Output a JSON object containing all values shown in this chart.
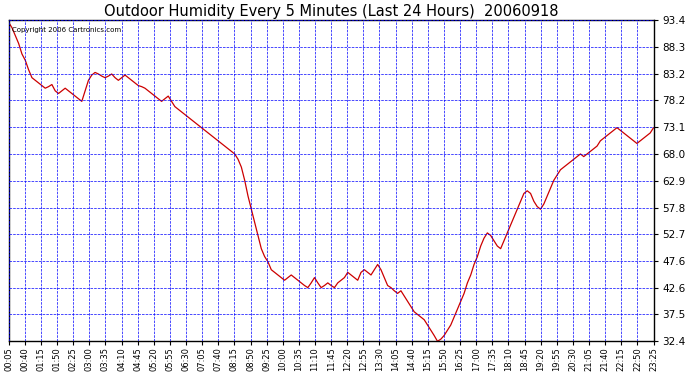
{
  "title": "Outdoor Humidity Every 5 Minutes (Last 24 Hours)  20060918",
  "copyright_text": "Copyright 2006 Cartronics.com",
  "line_color": "#cc0000",
  "background_color": "#ffffff",
  "plot_bg_color": "#ffffff",
  "grid_color": "#0000ff",
  "border_color": "#000000",
  "yticks": [
    32.4,
    37.5,
    42.6,
    47.6,
    52.7,
    57.8,
    62.9,
    68.0,
    73.1,
    78.2,
    83.2,
    88.3,
    93.4
  ],
  "ymin": 32.4,
  "ymax": 93.4,
  "xtick_labels": [
    "00:05",
    "00:40",
    "01:15",
    "01:50",
    "02:25",
    "03:00",
    "03:35",
    "04:10",
    "04:45",
    "05:20",
    "05:55",
    "06:30",
    "07:05",
    "07:40",
    "08:15",
    "08:50",
    "09:25",
    "10:00",
    "10:35",
    "11:10",
    "11:45",
    "12:20",
    "12:55",
    "13:30",
    "14:05",
    "14:40",
    "15:15",
    "15:50",
    "16:25",
    "17:00",
    "17:35",
    "18:10",
    "18:45",
    "19:20",
    "19:55",
    "20:30",
    "21:05",
    "21:40",
    "22:15",
    "22:50",
    "23:25"
  ],
  "humidity_values": [
    93.0,
    92.0,
    90.5,
    89.0,
    87.0,
    85.8,
    84.0,
    82.5,
    82.0,
    81.5,
    81.0,
    80.5,
    80.8,
    81.2,
    80.0,
    79.5,
    80.0,
    80.5,
    80.0,
    79.5,
    79.0,
    78.5,
    78.0,
    80.0,
    82.0,
    83.0,
    83.5,
    83.2,
    82.8,
    82.5,
    82.8,
    83.2,
    82.5,
    82.0,
    82.5,
    83.0,
    82.5,
    82.0,
    81.5,
    81.0,
    80.8,
    80.5,
    80.0,
    79.5,
    79.0,
    78.5,
    78.0,
    78.5,
    79.0,
    78.0,
    77.0,
    76.5,
    76.0,
    75.5,
    75.0,
    74.5,
    74.0,
    73.5,
    73.0,
    72.5,
    72.0,
    71.5,
    71.0,
    70.5,
    70.0,
    69.5,
    69.0,
    68.5,
    68.0,
    67.0,
    65.5,
    63.0,
    60.0,
    57.5,
    55.0,
    52.5,
    50.0,
    48.5,
    47.5,
    46.0,
    45.5,
    45.0,
    44.5,
    44.0,
    44.5,
    45.0,
    44.5,
    44.0,
    43.5,
    43.0,
    42.6,
    43.5,
    44.5,
    43.5,
    42.6,
    43.0,
    43.5,
    43.0,
    42.6,
    43.5,
    44.0,
    44.5,
    45.5,
    45.0,
    44.5,
    44.0,
    45.5,
    46.0,
    45.5,
    45.0,
    46.0,
    47.0,
    46.0,
    44.5,
    43.0,
    42.6,
    42.0,
    41.5,
    42.0,
    41.0,
    40.0,
    39.0,
    38.0,
    37.5,
    37.0,
    36.5,
    35.5,
    34.5,
    33.5,
    32.4,
    32.8,
    33.5,
    34.5,
    35.5,
    37.0,
    38.5,
    40.0,
    41.5,
    43.5,
    45.0,
    47.0,
    48.5,
    50.5,
    52.0,
    53.0,
    52.5,
    51.5,
    50.5,
    50.0,
    51.5,
    53.0,
    54.5,
    56.0,
    57.5,
    59.0,
    60.5,
    61.0,
    60.5,
    59.0,
    58.0,
    57.5,
    58.5,
    60.0,
    61.5,
    63.0,
    64.0,
    65.0,
    65.5,
    66.0,
    66.5,
    67.0,
    67.5,
    68.0,
    67.5,
    68.0,
    68.5,
    69.0,
    69.5,
    70.5,
    71.0,
    71.5,
    72.0,
    72.5,
    73.0,
    72.5,
    72.0,
    71.5,
    71.0,
    70.5,
    70.0,
    70.5,
    71.0,
    71.5,
    72.0,
    73.0
  ]
}
